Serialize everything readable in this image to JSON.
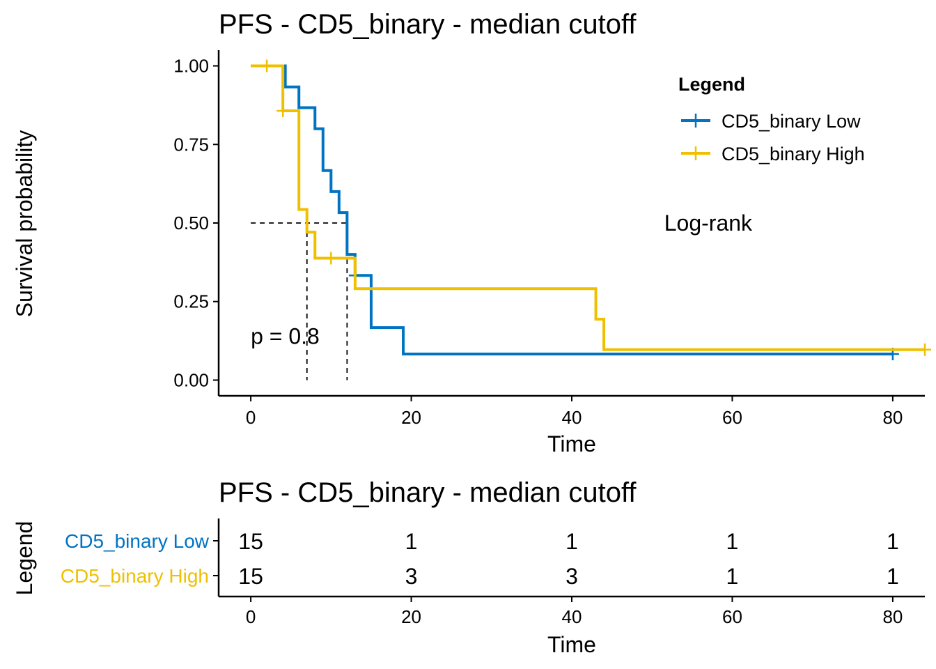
{
  "colors": {
    "low": "#0073C2",
    "high": "#EFC000",
    "axis": "#000000",
    "reference": "#000000"
  },
  "chart_data": [
    {
      "type": "line",
      "subtype": "kaplan-meier",
      "title": "PFS - CD5_binary - median cutoff",
      "xlabel": "Time",
      "ylabel": "Survival probability",
      "xlim": [
        -4,
        84
      ],
      "ylim": [
        -0.05,
        1.05
      ],
      "x_ticks": [
        0,
        20,
        40,
        60,
        80
      ],
      "x_tick_labels": [
        "0",
        "20",
        "40",
        "60",
        "80"
      ],
      "y_ticks": [
        0,
        0.25,
        0.5,
        0.75,
        1
      ],
      "y_tick_labels": [
        "0.00",
        "0.25",
        "0.50",
        "0.75",
        "1.00"
      ],
      "grid": false,
      "legend": {
        "title": "Legend",
        "position": "top-right"
      },
      "series": [
        {
          "name": "CD5_binary Low",
          "color_key": "low",
          "steps": [
            [
              0,
              1.0
            ],
            [
              4.3,
              0.933
            ],
            [
              6,
              0.867
            ],
            [
              8,
              0.8
            ],
            [
              8.3,
              0.8
            ],
            [
              9,
              0.667
            ],
            [
              10,
              0.6
            ],
            [
              11,
              0.533
            ],
            [
              12,
              0.4
            ],
            [
              13,
              0.333
            ],
            [
              15,
              0.167
            ],
            [
              19,
              0.083
            ],
            [
              80,
              0.083
            ]
          ],
          "censored": [
            [
              13,
              0.333
            ],
            [
              80,
              0.083
            ]
          ]
        },
        {
          "name": "CD5_binary High",
          "color_key": "high",
          "steps": [
            [
              0,
              1.0
            ],
            [
              4,
              0.857
            ],
            [
              5,
              0.857
            ],
            [
              6,
              0.543
            ],
            [
              7,
              0.471
            ],
            [
              8,
              0.388
            ],
            [
              13,
              0.291
            ],
            [
              43,
              0.194
            ],
            [
              44,
              0.097
            ],
            [
              84,
              0.097
            ]
          ],
          "censored": [
            [
              2,
              1.0
            ],
            [
              4,
              0.857
            ],
            [
              10,
              0.388
            ],
            [
              84,
              0.097
            ]
          ]
        }
      ],
      "median_lines": {
        "y": 0.5,
        "x_values": [
          7,
          12
        ]
      },
      "annotations": [
        {
          "text": "Log-rank",
          "x": 57,
          "y": 0.5
        },
        {
          "text": "p = 0.8",
          "x": 0,
          "y": 0.14
        }
      ]
    },
    {
      "type": "table",
      "subtype": "risk-table",
      "title": "PFS - CD5_binary - median cutoff",
      "xlabel": "Time",
      "ylabel": "Legend",
      "xlim": [
        -4,
        84
      ],
      "x_ticks": [
        0,
        20,
        40,
        60,
        80
      ],
      "x_tick_labels": [
        "0",
        "20",
        "40",
        "60",
        "80"
      ],
      "rows": [
        {
          "name": "CD5_binary Low",
          "color_key": "low",
          "values": [
            15,
            1,
            1,
            1,
            1
          ]
        },
        {
          "name": "CD5_binary High",
          "color_key": "high",
          "values": [
            15,
            3,
            3,
            1,
            1
          ]
        }
      ]
    }
  ]
}
